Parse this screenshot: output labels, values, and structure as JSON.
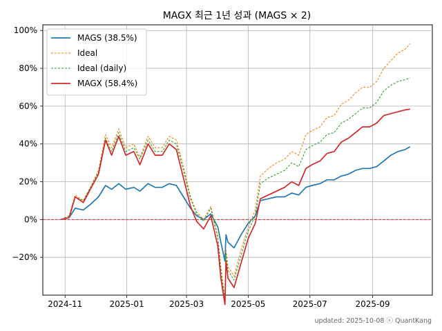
{
  "chart_data": {
    "type": "line",
    "title": "MAGX 최근 1년 성과 (MAGS × 2)",
    "xlabel": "",
    "ylabel": "",
    "footer": "updated: 2025-10-08 ⓒ QuantKang",
    "x_range": [
      "2024-10-10",
      "2025-10-30"
    ],
    "y_range": [
      -0.4,
      1.03
    ],
    "x_ticks": [
      "2024-11",
      "2025-01",
      "2025-03",
      "2025-05",
      "2025-07",
      "2025-09"
    ],
    "y_ticks": [
      {
        "value": 1.0,
        "label": "100%"
      },
      {
        "value": 0.8,
        "label": "80%"
      },
      {
        "value": 0.6,
        "label": "60%"
      },
      {
        "value": 0.4,
        "label": "40%"
      },
      {
        "value": 0.2,
        "label": "20%"
      },
      {
        "value": 0.0,
        "label": "0%"
      },
      {
        "value": -0.2,
        "label": "−20%"
      }
    ],
    "grid": true,
    "legend_position": "top-left",
    "reference_line": {
      "y": 0.0,
      "color": "#d62728",
      "style": "dashed"
    },
    "x": [
      "2024-10-28",
      "2024-11-05",
      "2024-11-11",
      "2024-11-19",
      "2024-11-26",
      "2024-12-04",
      "2024-12-11",
      "2024-12-17",
      "2024-12-24",
      "2024-12-31",
      "2025-01-08",
      "2025-01-14",
      "2025-01-22",
      "2025-01-29",
      "2025-02-05",
      "2025-02-12",
      "2025-02-19",
      "2025-02-26",
      "2025-03-05",
      "2025-03-11",
      "2025-03-18",
      "2025-03-25",
      "2025-04-01",
      "2025-04-04",
      "2025-04-08",
      "2025-04-09",
      "2025-04-11",
      "2025-04-17",
      "2025-04-24",
      "2025-05-01",
      "2025-05-08",
      "2025-05-13",
      "2025-05-21",
      "2025-05-29",
      "2025-06-06",
      "2025-06-13",
      "2025-06-20",
      "2025-06-27",
      "2025-07-03",
      "2025-07-11",
      "2025-07-18",
      "2025-07-25",
      "2025-08-01",
      "2025-08-08",
      "2025-08-15",
      "2025-08-22",
      "2025-08-29",
      "2025-09-05",
      "2025-09-12",
      "2025-09-19",
      "2025-09-26",
      "2025-10-03",
      "2025-10-08"
    ],
    "series": [
      {
        "name": "MAGS (38.5%)",
        "color": "#1f77b4",
        "style": "solid",
        "values": [
          0.0,
          0.01,
          0.06,
          0.05,
          0.08,
          0.12,
          0.18,
          0.16,
          0.19,
          0.16,
          0.17,
          0.15,
          0.19,
          0.17,
          0.17,
          0.19,
          0.18,
          0.12,
          0.06,
          0.02,
          0.0,
          0.03,
          -0.04,
          -0.12,
          -0.22,
          -0.08,
          -0.12,
          -0.15,
          -0.08,
          -0.02,
          0.02,
          0.1,
          0.11,
          0.12,
          0.12,
          0.14,
          0.13,
          0.17,
          0.18,
          0.19,
          0.21,
          0.21,
          0.23,
          0.24,
          0.26,
          0.27,
          0.27,
          0.28,
          0.31,
          0.34,
          0.36,
          0.37,
          0.385
        ]
      },
      {
        "name": "Ideal",
        "color": "#ff7f0e",
        "style": "dashed",
        "values": [
          0.0,
          0.02,
          0.13,
          0.1,
          0.17,
          0.26,
          0.45,
          0.38,
          0.48,
          0.38,
          0.4,
          0.33,
          0.44,
          0.38,
          0.38,
          0.44,
          0.42,
          0.28,
          0.12,
          0.04,
          0.0,
          0.07,
          -0.09,
          -0.25,
          -0.42,
          -0.16,
          -0.25,
          -0.3,
          -0.16,
          -0.04,
          0.05,
          0.23,
          0.27,
          0.3,
          0.32,
          0.36,
          0.34,
          0.45,
          0.47,
          0.49,
          0.54,
          0.55,
          0.61,
          0.63,
          0.67,
          0.7,
          0.7,
          0.73,
          0.8,
          0.84,
          0.88,
          0.9,
          0.93
        ]
      },
      {
        "name": "Ideal (daily)",
        "color": "#2ca02c",
        "style": "dashed",
        "values": [
          0.0,
          0.02,
          0.12,
          0.1,
          0.17,
          0.25,
          0.43,
          0.36,
          0.46,
          0.36,
          0.38,
          0.32,
          0.42,
          0.36,
          0.36,
          0.42,
          0.4,
          0.26,
          0.11,
          0.03,
          -0.01,
          0.06,
          -0.1,
          -0.27,
          -0.43,
          -0.18,
          -0.27,
          -0.32,
          -0.19,
          -0.06,
          0.02,
          0.19,
          0.22,
          0.24,
          0.26,
          0.3,
          0.28,
          0.37,
          0.39,
          0.41,
          0.45,
          0.46,
          0.51,
          0.53,
          0.56,
          0.59,
          0.59,
          0.62,
          0.68,
          0.71,
          0.73,
          0.74,
          0.75
        ]
      },
      {
        "name": "MAGX (58.4%)",
        "color": "#d62728",
        "style": "solid",
        "values": [
          0.0,
          0.01,
          0.12,
          0.09,
          0.16,
          0.24,
          0.42,
          0.34,
          0.44,
          0.34,
          0.36,
          0.29,
          0.4,
          0.34,
          0.34,
          0.4,
          0.37,
          0.22,
          0.07,
          -0.01,
          -0.05,
          0.02,
          -0.14,
          -0.31,
          -0.45,
          -0.22,
          -0.31,
          -0.36,
          -0.23,
          -0.1,
          -0.02,
          0.11,
          0.13,
          0.15,
          0.17,
          0.2,
          0.18,
          0.27,
          0.29,
          0.31,
          0.35,
          0.36,
          0.41,
          0.43,
          0.46,
          0.49,
          0.49,
          0.51,
          0.55,
          0.56,
          0.57,
          0.58,
          0.584
        ]
      }
    ]
  }
}
